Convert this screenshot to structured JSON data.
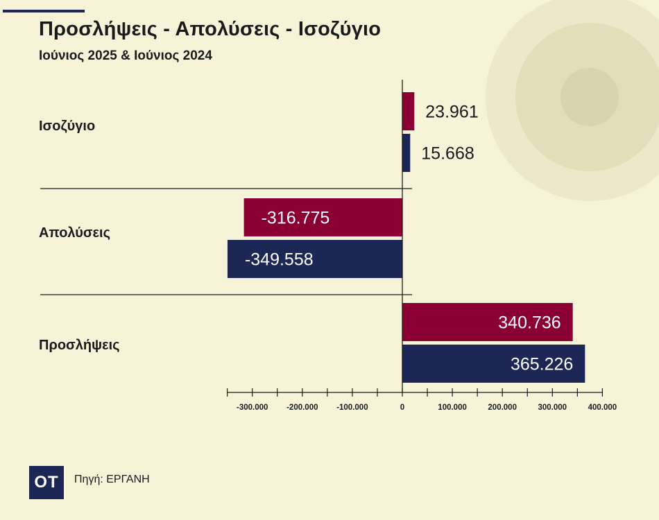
{
  "title": "Προσλήψεις - Απολύσεις - Ισοζύγιο",
  "subtitle": "Ιούνιος 2025 & Ιούνιος 2024",
  "source": "Πηγή: ΕΡΓΑΝΗ",
  "logo_text": "ΟΤ",
  "colors": {
    "background": "#f6f3d9",
    "series_2025": "#8b0032",
    "series_2024": "#1c2756",
    "deco_outer": "#ece8c9",
    "deco_mid": "#e2deba",
    "deco_inner": "#d8d4b0"
  },
  "chart_data": {
    "type": "bar",
    "orientation": "horizontal",
    "categories": [
      "Ισοζύγιο",
      "Απολύσεις",
      "Προσλήψεις"
    ],
    "series": [
      {
        "values": [
          23961,
          -316775,
          340736
        ],
        "labels": [
          "23.961",
          "-316.775",
          "340.736"
        ],
        "color": "#8b0032"
      },
      {
        "values": [
          15668,
          -349558,
          365226
        ],
        "labels": [
          "15.668",
          "-349.558",
          "365.226"
        ],
        "color": "#1c2756"
      }
    ],
    "xlim": [
      -350000,
      400000
    ],
    "xticks": [
      -300000,
      -200000,
      -100000,
      0,
      100000,
      200000,
      300000,
      400000
    ],
    "xtick_labels": [
      "-300.000",
      "-200.000",
      "-100.000",
      "0",
      "100.000",
      "200.000",
      "300.000",
      "400.000"
    ],
    "grid": false
  }
}
